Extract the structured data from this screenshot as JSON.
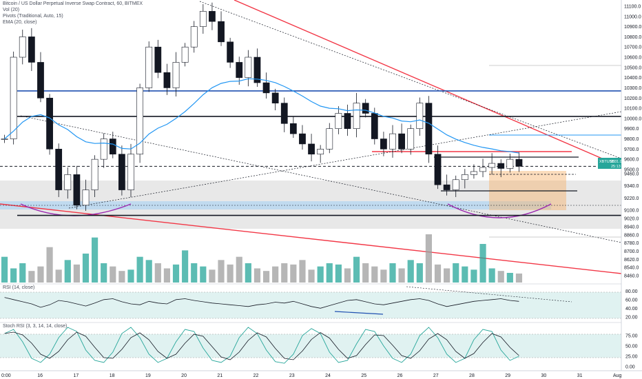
{
  "header": {
    "symbol_line": "Bitcoin / US Dollar Perpetual Inverse Swap Contract, 60, BITMEX",
    "vol_line": "Vol (20)",
    "pivots_line": "Pivots (Traditional, Auto, 15)",
    "ema_line": "EMA (20, close)"
  },
  "price_badge": {
    "symbol": "XBTUSD",
    "value": "9531.0",
    "countdown": "25:13"
  },
  "colors": {
    "bull": "#26a69a",
    "bear": "#ef5350",
    "candle": "#131722",
    "ema": "#2196f3",
    "trend_red": "#f23645",
    "level_blue": "#1e4fb0",
    "zone_gray": "#bdbdbd",
    "zone_blue": "#90caf9",
    "zone_orange": "#f6b26b",
    "arc_purple": "#9c27b0",
    "osc_fill": "#b2dfdb"
  },
  "chart_data": {
    "type": "candlestick",
    "price_axis": {
      "ticks": [
        "11100.0",
        "11000.0",
        "10900.0",
        "10800.0",
        "10700.0",
        "10600.0",
        "10500.0",
        "10400.0",
        "10300.0",
        "10200.0",
        "10100.0",
        "10000.0",
        "9900.0",
        "9800.0",
        "9700.0",
        "9600.0",
        "9500.0",
        "9460.0",
        "9340.0",
        "9220.0",
        "9100.0",
        "9020.0",
        "8940.0",
        "8860.0",
        "8780.0",
        "8700.0",
        "8620.0",
        "8540.0",
        "8460.0"
      ],
      "range": [
        8460,
        11120
      ]
    },
    "time_axis": {
      "ticks": [
        "0:00",
        "16",
        "17",
        "18",
        "19",
        "20",
        "21",
        "22",
        "23",
        "24",
        "25",
        "26",
        "27",
        "28",
        "29",
        "30",
        "31",
        "Aug"
      ]
    },
    "horizontal_levels": [
      {
        "price": 10270,
        "color": "#1e4fb0",
        "style": "solid"
      },
      {
        "price": 10020,
        "color": "#131722",
        "style": "solid"
      },
      {
        "price": 9050,
        "color": "#131722",
        "style": "solid"
      },
      {
        "price": 9531,
        "color": "#131722",
        "style": "dashed"
      }
    ],
    "close_path": [
      9800,
      10600,
      10800,
      10550,
      10200,
      9700,
      9300,
      9450,
      9150,
      9300,
      9600,
      9800,
      9650,
      9300,
      9650,
      10300,
      10700,
      10450,
      10300,
      10550,
      10700,
      10900,
      11050,
      10950,
      10750,
      10550,
      10400,
      10600,
      10350,
      10250,
      10150,
      9950,
      9850,
      9750,
      9650,
      9700,
      9900,
      10050,
      9900,
      10150,
      10050,
      9800,
      9700,
      9850,
      9700,
      9900,
      10150,
      9650,
      9350,
      9300,
      9400,
      9450,
      9480,
      9520,
      9560,
      9510,
      9600,
      9531
    ],
    "volume": [
      40,
      22,
      30,
      18,
      25,
      55,
      20,
      35,
      28,
      45,
      70,
      30,
      25,
      18,
      20,
      40,
      35,
      30,
      22,
      28,
      50,
      30,
      25,
      20,
      35,
      28,
      40,
      30,
      22,
      18,
      25,
      30,
      28,
      35,
      20,
      25,
      30,
      28,
      22,
      40,
      30,
      25,
      20,
      30,
      22,
      35,
      30,
      75,
      28,
      22,
      30,
      25,
      20,
      60,
      22,
      18,
      15,
      14
    ],
    "rsi": {
      "label": "RSI (14, close)",
      "ticks": [
        "80.00",
        "60.00",
        "40.00",
        "20.00"
      ],
      "values": [
        65,
        60,
        55,
        50,
        42,
        48,
        58,
        55,
        50,
        45,
        52,
        60,
        62,
        55,
        50,
        48,
        56,
        52,
        50,
        60,
        62,
        58,
        55,
        52,
        50,
        48,
        46,
        44,
        48,
        50,
        54,
        52,
        56,
        50,
        44,
        40,
        46,
        52,
        58,
        60,
        55,
        50,
        48,
        52,
        56,
        60,
        62,
        58,
        50,
        44,
        48,
        52,
        56,
        58,
        60,
        62,
        58,
        56
      ]
    },
    "stoch_rsi": {
      "label": "Stoch RSI (3, 3, 14, 14, close)",
      "ticks": [
        "75.00",
        "50.00",
        "25.00",
        "0.00"
      ],
      "values": [
        80,
        90,
        60,
        20,
        10,
        30,
        70,
        95,
        85,
        40,
        15,
        10,
        35,
        80,
        95,
        70,
        30,
        10,
        20,
        60,
        90,
        85,
        45,
        15,
        10,
        25,
        70,
        95,
        80,
        40,
        12,
        8,
        30,
        75,
        92,
        80,
        35,
        10,
        15,
        55,
        90,
        85,
        50,
        20,
        10,
        30,
        75,
        95,
        70,
        30,
        10,
        20,
        65,
        90,
        85,
        40,
        15,
        25
      ]
    }
  }
}
